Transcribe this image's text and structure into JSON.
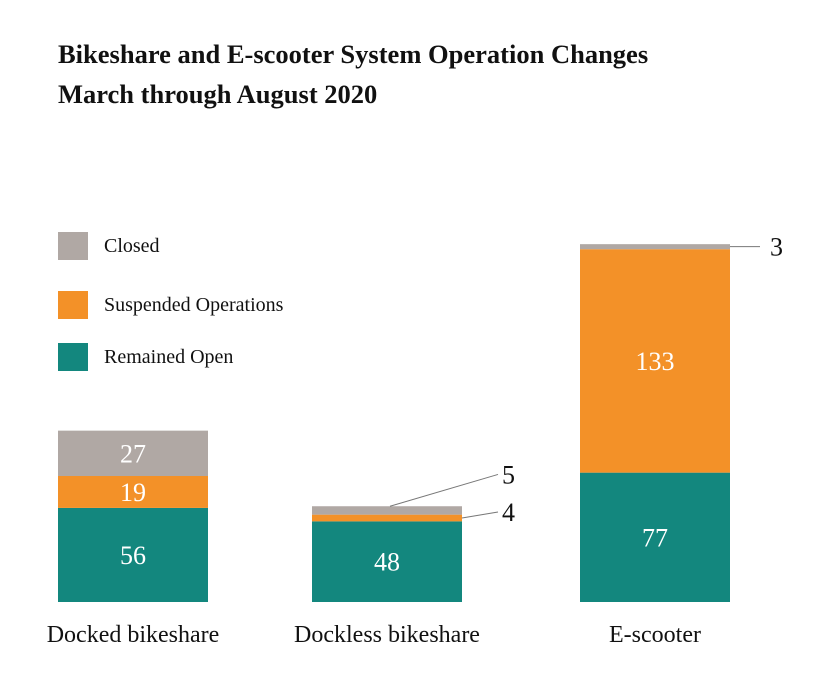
{
  "title_lines": [
    "Bikeshare and E-scooter System Operation Changes",
    "March through August 2020"
  ],
  "colors": {
    "closed": "#b0a8a4",
    "suspended": "#f39128",
    "remained_open": "#13877e"
  },
  "chart_data": {
    "type": "bar",
    "stacked": true,
    "title": "Bikeshare and E-scooter System Operation Changes March through August 2020",
    "categories": [
      "Docked bikeshare",
      "Dockless bikeshare",
      "E-scooter"
    ],
    "series": [
      {
        "name": "Remained Open",
        "values": [
          56,
          48,
          77
        ],
        "color": "#13877e"
      },
      {
        "name": "Suspended Operations",
        "values": [
          19,
          4,
          133
        ],
        "color": "#f39128"
      },
      {
        "name": "Closed",
        "values": [
          27,
          5,
          3
        ],
        "color": "#b0a8a4"
      }
    ],
    "legend": [
      {
        "label": "Closed",
        "color": "#b0a8a4"
      },
      {
        "label": "Suspended Operations",
        "color": "#f39128"
      },
      {
        "label": "Remained Open",
        "color": "#13877e"
      }
    ],
    "legend_position": "left",
    "axes_visible": false,
    "grid": false
  }
}
